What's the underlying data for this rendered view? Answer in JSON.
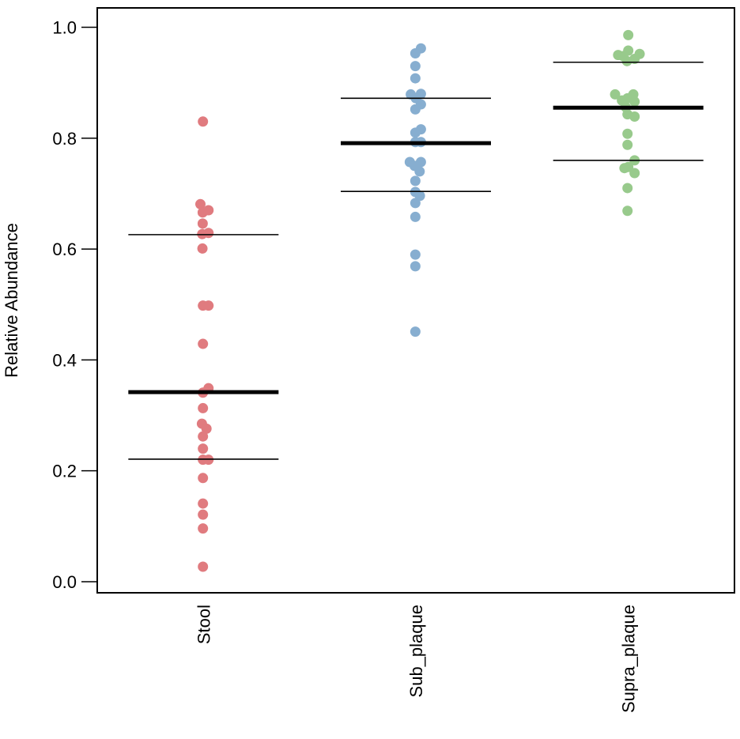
{
  "chart_data": {
    "type": "scatter",
    "title": "",
    "xlabel": "",
    "ylabel": "Relative Abundance",
    "ylim": [
      -0.02,
      1.035
    ],
    "yticks": [
      0.0,
      0.2,
      0.4,
      0.6,
      0.8,
      1.0
    ],
    "ytick_labels": [
      "0.0",
      "0.2",
      "0.4",
      "0.6",
      "0.8",
      "1.0"
    ],
    "categories": [
      "Stool",
      "Sub_plaque",
      "Supra_plaque"
    ],
    "series": [
      {
        "name": "Stool",
        "color": "#e07b7f",
        "median": 0.342,
        "q1": 0.221,
        "q3": 0.626,
        "points": [
          [
            -0.02,
            0.83
          ],
          [
            -0.12,
            0.681
          ],
          [
            -0.03,
            0.666
          ],
          [
            0.2,
            0.67
          ],
          [
            -0.03,
            0.646
          ],
          [
            -0.05,
            0.627
          ],
          [
            0.2,
            0.629
          ],
          [
            -0.04,
            0.601
          ],
          [
            -0.02,
            0.498
          ],
          [
            0.2,
            0.498
          ],
          [
            -0.02,
            0.429
          ],
          [
            0.2,
            0.349
          ],
          [
            -0.02,
            0.341
          ],
          [
            -0.02,
            0.313
          ],
          [
            -0.06,
            0.285
          ],
          [
            0.12,
            0.276
          ],
          [
            -0.02,
            0.262
          ],
          [
            -0.02,
            0.24
          ],
          [
            -0.02,
            0.22
          ],
          [
            0.2,
            0.22
          ],
          [
            -0.02,
            0.187
          ],
          [
            -0.02,
            0.141
          ],
          [
            -0.02,
            0.121
          ],
          [
            -0.02,
            0.096
          ],
          [
            -0.02,
            0.027
          ]
        ]
      },
      {
        "name": "Sub_plaque",
        "color": "#87aed0",
        "median": 0.791,
        "q1": 0.704,
        "q3": 0.872,
        "points": [
          [
            0.2,
            0.962
          ],
          [
            -0.02,
            0.953
          ],
          [
            -0.02,
            0.93
          ],
          [
            -0.02,
            0.908
          ],
          [
            -0.2,
            0.879
          ],
          [
            0.2,
            0.88
          ],
          [
            0.0,
            0.872
          ],
          [
            0.2,
            0.861
          ],
          [
            -0.02,
            0.852
          ],
          [
            0.2,
            0.816
          ],
          [
            -0.02,
            0.81
          ],
          [
            0.2,
            0.793
          ],
          [
            -0.02,
            0.793
          ],
          [
            -0.24,
            0.757
          ],
          [
            0.2,
            0.757
          ],
          [
            -0.05,
            0.75
          ],
          [
            0.15,
            0.74
          ],
          [
            -0.02,
            0.723
          ],
          [
            -0.02,
            0.703
          ],
          [
            0.16,
            0.696
          ],
          [
            -0.02,
            0.683
          ],
          [
            -0.02,
            0.658
          ],
          [
            -0.02,
            0.59
          ],
          [
            -0.02,
            0.569
          ],
          [
            -0.02,
            0.451
          ]
        ]
      },
      {
        "name": "Supra_plaque",
        "color": "#98ca8c",
        "median": 0.855,
        "q1": 0.76,
        "q3": 0.937,
        "points": [
          [
            0.0,
            0.986
          ],
          [
            0.0,
            0.958
          ],
          [
            -0.4,
            0.95
          ],
          [
            -0.2,
            0.948
          ],
          [
            0.45,
            0.952
          ],
          [
            -0.05,
            0.939
          ],
          [
            0.25,
            0.943
          ],
          [
            -0.52,
            0.879
          ],
          [
            0.2,
            0.879
          ],
          [
            -0.25,
            0.868
          ],
          [
            -0.03,
            0.872
          ],
          [
            0.25,
            0.866
          ],
          [
            -0.1,
            0.856
          ],
          [
            -0.03,
            0.843
          ],
          [
            0.25,
            0.839
          ],
          [
            -0.03,
            0.808
          ],
          [
            -0.03,
            0.788
          ],
          [
            0.25,
            0.76
          ],
          [
            -0.15,
            0.746
          ],
          [
            0.0,
            0.748
          ],
          [
            0.25,
            0.737
          ],
          [
            -0.03,
            0.71
          ],
          [
            -0.03,
            0.669
          ]
        ]
      }
    ]
  }
}
